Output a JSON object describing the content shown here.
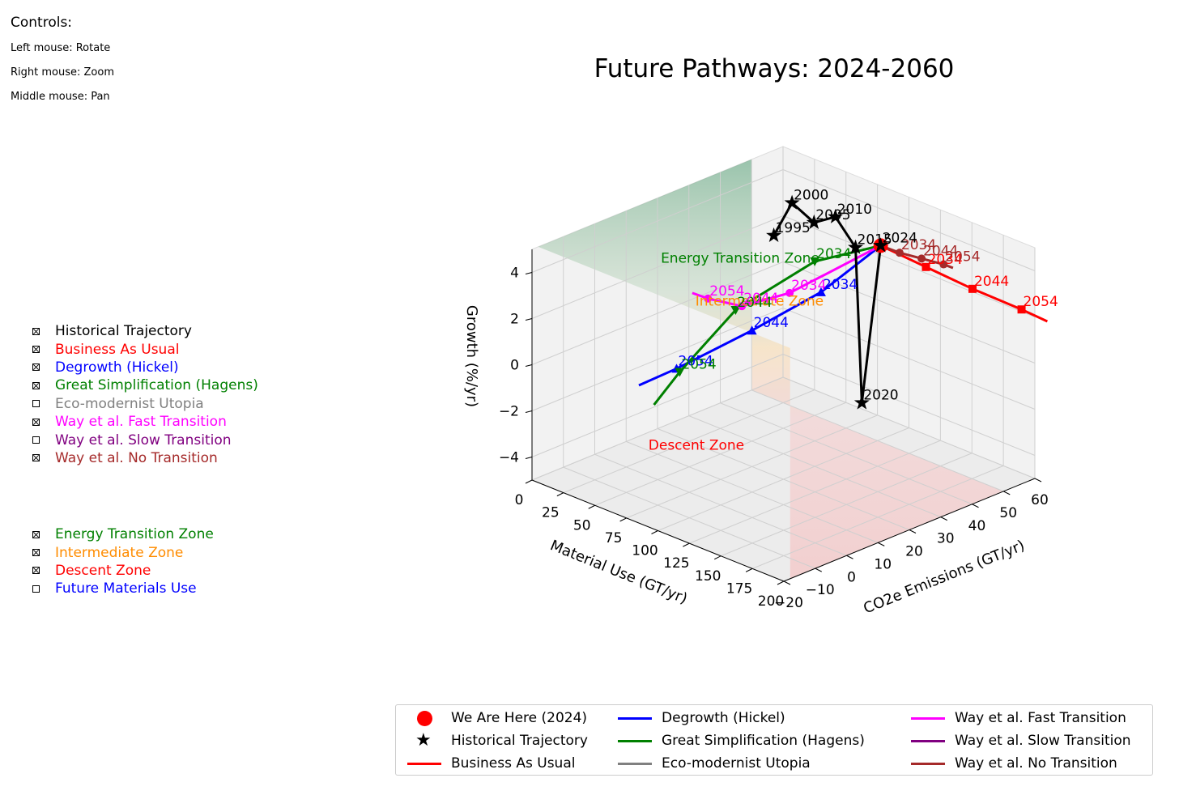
{
  "controls": {
    "heading": "Controls:",
    "hints": [
      "Left mouse: Rotate",
      "Right mouse: Zoom",
      "Middle mouse: Pan"
    ]
  },
  "series_toggles": [
    {
      "label": "Historical Trajectory",
      "checked": true,
      "color": "#000000"
    },
    {
      "label": "Business As Usual",
      "checked": true,
      "color": "#ff0000"
    },
    {
      "label": "Degrowth (Hickel)",
      "checked": true,
      "color": "#0000ff"
    },
    {
      "label": "Great Simplification (Hagens)",
      "checked": true,
      "color": "#008000"
    },
    {
      "label": "Eco-modernist Utopia",
      "checked": false,
      "color": "#808080"
    },
    {
      "label": "Way et al. Fast Transition",
      "checked": true,
      "color": "#ff00ff"
    },
    {
      "label": "Way et al. Slow Transition",
      "checked": false,
      "color": "#800080"
    },
    {
      "label": "Way et al. No Transition",
      "checked": true,
      "color": "#a52a2a"
    }
  ],
  "zone_toggles": [
    {
      "label": "Energy Transition Zone",
      "checked": true,
      "color": "#008000"
    },
    {
      "label": "Intermediate Zone",
      "checked": true,
      "color": "#ff8c00"
    },
    {
      "label": "Descent Zone",
      "checked": true,
      "color": "#ff0000"
    },
    {
      "label": "Future Materials Use",
      "checked": false,
      "color": "#0000ff"
    }
  ],
  "legend": [
    {
      "label": "We Are Here (2024)",
      "marker": "dot",
      "color": "#ff0000"
    },
    {
      "label": "Historical Trajectory",
      "marker": "star",
      "color": "#000000"
    },
    {
      "label": "Business As Usual",
      "marker": "line",
      "color": "#ff0000"
    },
    {
      "label": "Degrowth (Hickel)",
      "marker": "line",
      "color": "#0000ff"
    },
    {
      "label": "Great Simplification (Hagens)",
      "marker": "line",
      "color": "#008000"
    },
    {
      "label": "Eco-modernist Utopia",
      "marker": "line",
      "color": "#808080"
    },
    {
      "label": "Way et al. Fast Transition",
      "marker": "line",
      "color": "#ff00ff"
    },
    {
      "label": "Way et al. Slow Transition",
      "marker": "line",
      "color": "#800080"
    },
    {
      "label": "Way et al. No Transition",
      "marker": "line",
      "color": "#a52a2a"
    }
  ],
  "chart_data": {
    "type": "scatter3d",
    "title": "Future Pathways: 2024-2060",
    "xlabel": "CO2e Emissions (GT/yr)",
    "ylabel": "Material Use (GT/yr)",
    "zlabel": "Growth (%/yr)",
    "xlim": [
      -20,
      60
    ],
    "ylim": [
      0,
      200
    ],
    "zlim": [
      -5,
      5
    ],
    "x_ticks": [
      "−20",
      "−10",
      "0",
      "10",
      "20",
      "30",
      "40",
      "50",
      "60"
    ],
    "y_ticks": [
      "0",
      "25",
      "50",
      "75",
      "100",
      "125",
      "150",
      "175",
      "200"
    ],
    "z_ticks": [
      "−4",
      "−2",
      "0",
      "2",
      "4"
    ],
    "grid": true,
    "zones": [
      {
        "label": "Energy Transition Zone",
        "color": "#008000",
        "z_range": [
          2.5,
          5
        ]
      },
      {
        "label": "Intermediate Zone",
        "color": "#ff8c00",
        "z_range": [
          0,
          2.5
        ]
      },
      {
        "label": "Descent Zone",
        "color": "#ff0000",
        "z_range": [
          -5,
          0
        ]
      }
    ],
    "we_are_here": {
      "x": 51,
      "y": 100,
      "z": 3.4,
      "label": "2024"
    },
    "historical": {
      "name": "Historical Trajectory",
      "color": "#000000",
      "points": [
        {
          "label": "1995",
          "x": 39,
          "y": 45,
          "z": 3.3
        },
        {
          "label": "2000",
          "x": 42,
          "y": 52,
          "z": 4.7
        },
        {
          "label": "2005",
          "x": 45,
          "y": 62,
          "z": 3.9
        },
        {
          "label": "2010",
          "x": 47,
          "y": 74,
          "z": 4.3
        },
        {
          "label": "2015",
          "x": 49,
          "y": 85,
          "z": 3.1
        },
        {
          "label": "2020",
          "x": 47,
          "y": 95,
          "z": -3.3
        },
        {
          "label": "2024",
          "x": 51,
          "y": 100,
          "z": 3.4
        }
      ]
    },
    "series": [
      {
        "name": "Business As Usual",
        "color": "#ff0000",
        "marker": "square",
        "points": [
          {
            "year": "2024",
            "x": 51,
            "y": 100,
            "z": 3.4
          },
          {
            "year": "2034",
            "x": 57,
            "y": 121,
            "z": 2.6
          },
          {
            "year": "2044",
            "x": 63,
            "y": 143,
            "z": 1.8
          },
          {
            "year": "2054",
            "x": 69,
            "y": 167,
            "z": 1.1
          },
          {
            "year": "",
            "x": 72,
            "y": 180,
            "z": 0.7
          }
        ]
      },
      {
        "name": "Way et al. No Transition",
        "color": "#a52a2a",
        "marker": "circle",
        "points": [
          {
            "year": "2024",
            "x": 51,
            "y": 100,
            "z": 3.4
          },
          {
            "year": "2034",
            "x": 53,
            "y": 110,
            "z": 3.2
          },
          {
            "year": "2044",
            "x": 56,
            "y": 120,
            "z": 3.0
          },
          {
            "year": "2054",
            "x": 59,
            "y": 130,
            "z": 2.8
          },
          {
            "year": "",
            "x": 60,
            "y": 135,
            "z": 2.7
          }
        ]
      },
      {
        "name": "Degrowth (Hickel)",
        "color": "#0000ff",
        "marker": "triangle",
        "points": [
          {
            "year": "2024",
            "x": 51,
            "y": 100,
            "z": 3.4
          },
          {
            "year": "2034",
            "x": 36,
            "y": 90,
            "z": 2.0
          },
          {
            "year": "2044",
            "x": 20,
            "y": 75,
            "z": 0.9
          },
          {
            "year": "2054",
            "x": 4,
            "y": 55,
            "z": -0.3
          },
          {
            "year": "",
            "x": -4,
            "y": 45,
            "z": -0.8
          }
        ]
      },
      {
        "name": "Great Simplification (Hagens)",
        "color": "#008000",
        "marker": "triangle-down",
        "points": [
          {
            "year": "2024",
            "x": 51,
            "y": 100,
            "z": 3.4
          },
          {
            "year": "2034",
            "x": 38,
            "y": 80,
            "z": 3.0
          },
          {
            "year": "2044",
            "x": 20,
            "y": 62,
            "z": 1.5
          },
          {
            "year": "2054",
            "x": 5,
            "y": 55,
            "z": -0.5
          },
          {
            "year": "",
            "x": -2,
            "y": 52,
            "z": -1.6
          }
        ]
      },
      {
        "name": "Way et al. Fast Transition",
        "color": "#ff00ff",
        "marker": "circle",
        "points": [
          {
            "year": "2024",
            "x": 51,
            "y": 100,
            "z": 3.4
          },
          {
            "year": "2034",
            "x": 28,
            "y": 85,
            "z": 2.3
          },
          {
            "year": "2044",
            "x": 18,
            "y": 72,
            "z": 2.0
          },
          {
            "year": "2054",
            "x": 12,
            "y": 60,
            "z": 2.4
          },
          {
            "year": "",
            "x": 9,
            "y": 55,
            "z": 2.7
          }
        ]
      }
    ]
  }
}
